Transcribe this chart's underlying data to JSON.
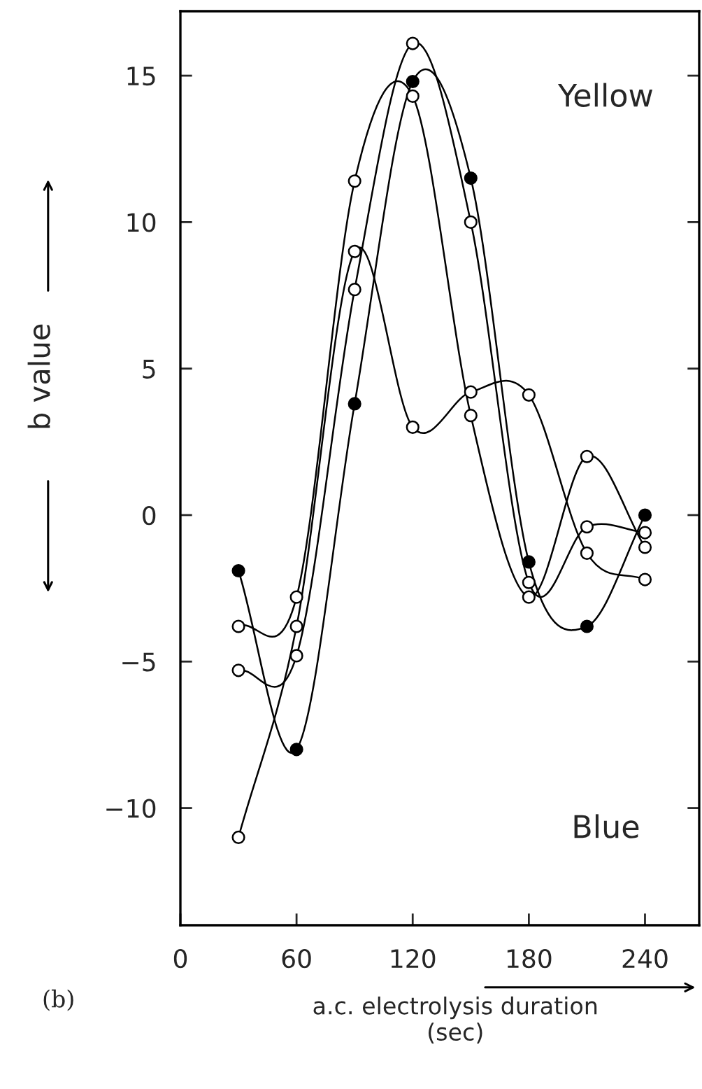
{
  "chart_data": {
    "type": "line",
    "xlabel": "a.c. electrolysis duration\n(sec)",
    "ylabel": "b value",
    "x": [
      30,
      60,
      90,
      120,
      150,
      180,
      210,
      240
    ],
    "series": [
      {
        "color": "#000000",
        "values": [
          -1.9,
          -8.0,
          3.8,
          14.8,
          11.5,
          -1.6,
          -3.8,
          0
        ]
      },
      {
        "color": "#000000",
        "values": [
          -3.8,
          -2.8,
          11.4,
          14.3,
          3.4,
          -2.8,
          2.0,
          -1.1
        ]
      },
      {
        "color": "#000000",
        "values": [
          -5.3,
          -4.8,
          7.7,
          16.1,
          10.0,
          -2.3,
          -0.4,
          -0.6
        ]
      },
      {
        "color": "#000000",
        "values": [
          -11.0,
          -3.8,
          9.0,
          3.0,
          4.2,
          4.1,
          -1.3,
          -2.2
        ]
      }
    ],
    "xlim": [
      0,
      268
    ],
    "ylim": [
      -14,
      17.2
    ],
    "xticks": [
      0,
      60,
      120,
      180,
      240
    ],
    "yticks": [
      -10,
      -5,
      0,
      5,
      10,
      15
    ],
    "marker": "circle",
    "grid": false,
    "legend": false,
    "annotations": [
      "Yellow",
      "Blue",
      "(b)"
    ]
  }
}
